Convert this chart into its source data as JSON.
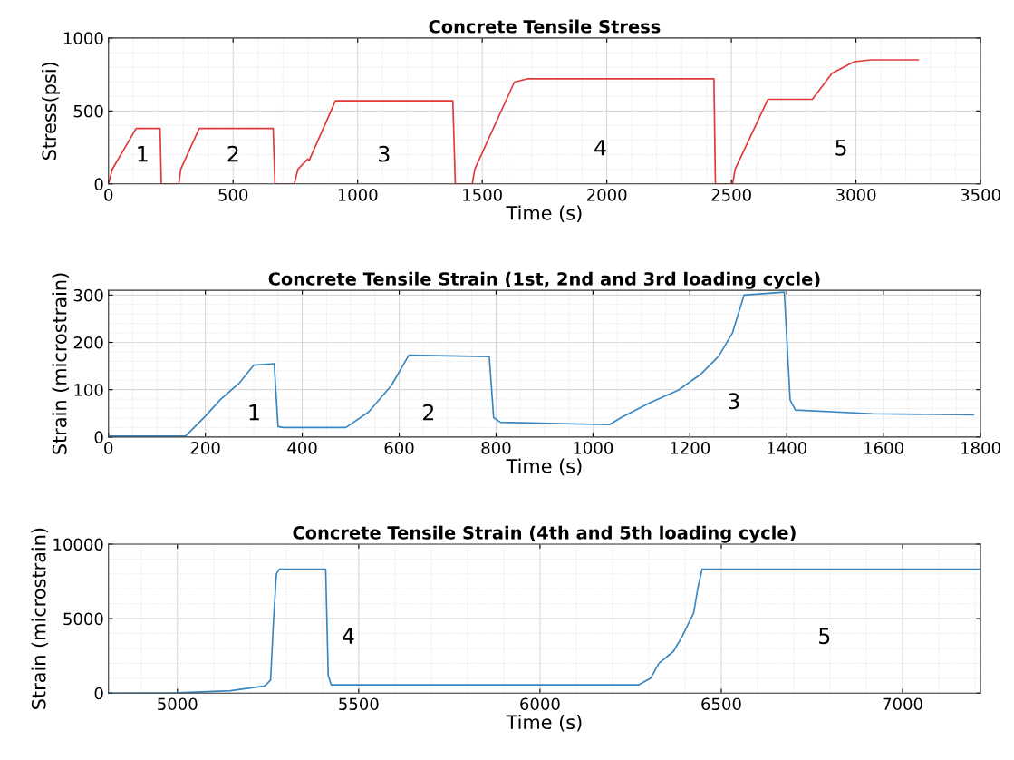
{
  "chart_data": [
    {
      "type": "line",
      "title": "Concrete Tensile Stress",
      "xlabel": "Time (s)",
      "ylabel": "Stress(psi)",
      "xlim": [
        0,
        3500
      ],
      "ylim": [
        0,
        1000
      ],
      "xticks": [
        0,
        500,
        1000,
        1500,
        2000,
        2500,
        3000,
        3500
      ],
      "yticks": [
        0,
        500,
        1000
      ],
      "grid": true,
      "series": [
        {
          "color": "#e0393a",
          "x": [
            0,
            15,
            111,
            207,
            212,
            282,
            290,
            364,
            661,
            668,
            746,
            760,
            800,
            805,
            911,
            1382,
            1392,
            1460,
            1470,
            1629,
            1680,
            2430,
            2436,
            2505,
            2515,
            2647,
            2825,
            2904,
            2993,
            3061,
            3250
          ],
          "values": [
            0,
            100,
            380,
            380,
            0,
            0,
            100,
            380,
            380,
            0,
            0,
            100,
            170,
            160,
            570,
            570,
            0,
            0,
            100,
            698,
            720,
            720,
            0,
            0,
            100,
            580,
            580,
            758,
            838,
            850,
            850
          ]
        }
      ],
      "annotations": [
        "1",
        "2",
        "3",
        "4",
        "5"
      ]
    },
    {
      "type": "line",
      "title": "Concrete Tensile Strain (1st, 2nd and 3rd loading cycle)",
      "xlabel": "Time (s)",
      "ylabel": "Strain (microstrain)",
      "xlim": [
        0,
        1800
      ],
      "ylim": [
        0,
        310
      ],
      "xticks": [
        0,
        200,
        400,
        600,
        800,
        1000,
        1200,
        1400,
        1600,
        1800
      ],
      "yticks": [
        0,
        100,
        200,
        300
      ],
      "grid": true,
      "series": [
        {
          "color": "#3a87c0",
          "x": [
            0,
            159,
            200,
            230,
            271,
            300,
            342,
            350,
            360,
            490,
            537,
            584,
            620,
            786,
            795,
            809,
            1034,
            1058,
            1117,
            1176,
            1223,
            1259,
            1288,
            1312,
            1395,
            1407,
            1418,
            1578,
            1785
          ],
          "values": [
            2,
            2,
            44,
            78,
            115,
            152,
            155,
            22,
            20,
            20,
            53,
            109,
            173,
            170,
            41,
            31,
            26,
            41,
            72,
            99,
            133,
            170,
            220,
            300,
            306,
            78,
            57,
            49,
            47
          ]
        }
      ],
      "annotations": [
        "1",
        "2",
        "3"
      ]
    },
    {
      "type": "line",
      "title": "Concrete Tensile Strain (4th and 5th loading cycle)",
      "xlabel": "Time (s)",
      "ylabel": "Strain (microstrain)",
      "xlim": [
        4810,
        7215
      ],
      "ylim": [
        0,
        10000
      ],
      "xticks": [
        5000,
        5500,
        6000,
        6500,
        7000
      ],
      "yticks": [
        0,
        5000,
        10000
      ],
      "grid": true,
      "series": [
        {
          "color": "#3a87c0",
          "x": [
            4810,
            5003,
            5146,
            5241,
            5257,
            5265,
            5273,
            5281,
            5409,
            5416,
            5424,
            6273,
            6305,
            6328,
            6368,
            6392,
            6424,
            6435,
            6447,
            7215
          ],
          "values": [
            0,
            20,
            160,
            480,
            880,
            4800,
            8000,
            8320,
            8320,
            1200,
            560,
            560,
            1000,
            2000,
            2800,
            3800,
            5400,
            7000,
            8320,
            8320
          ]
        }
      ],
      "annotations": [
        "4",
        "5"
      ]
    }
  ]
}
